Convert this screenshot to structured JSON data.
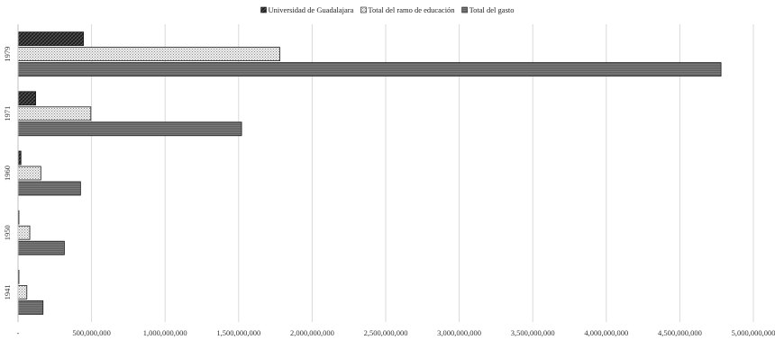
{
  "chart_data": {
    "type": "bar",
    "orientation": "horizontal",
    "title": "",
    "xlabel": "",
    "ylabel": "",
    "categories": [
      "1979",
      "1971",
      "1960",
      "1950",
      "1941"
    ],
    "series": [
      {
        "name": "Universidad de Guadalajara",
        "values": [
          445000000,
          120000000,
          20000000,
          6000000,
          5000000
        ]
      },
      {
        "name": "Total del ramo de educación",
        "values": [
          1780000000,
          495000000,
          155000000,
          80000000,
          60000000
        ]
      },
      {
        "name": "Total del gasto",
        "values": [
          4780000000,
          1520000000,
          425000000,
          315000000,
          170000000
        ]
      }
    ],
    "xlim": [
      0,
      5000000000
    ],
    "xticks": [
      0,
      500000000,
      1000000000,
      1500000000,
      2000000000,
      2500000000,
      3000000000,
      3500000000,
      4000000000,
      4500000000,
      5000000000
    ],
    "xtick_labels": [
      "-",
      "500,000,000",
      "1,000,000,000",
      "1,500,000,000",
      "2,000,000,000",
      "2,500,000,000",
      "3,000,000,000",
      "3,500,000,000",
      "4,000,000,000",
      "4,500,000,000",
      "5,000,000,000"
    ],
    "grid": true,
    "legend_position": "top"
  }
}
